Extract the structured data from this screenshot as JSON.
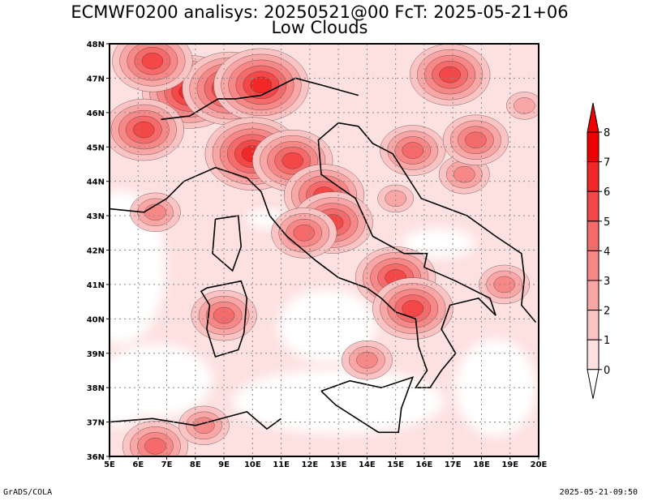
{
  "header": {
    "title_line1": "ECMWF0200 analisys: 20250521@00 FcT: 2025-05-21+06",
    "title_line2": "Low Clouds"
  },
  "footer": {
    "left": "GrADS/COLA",
    "right": "2025-05-21-09:50"
  },
  "chart_data": {
    "type": "heatmap",
    "title": "ECMWF0200 analisys: 20250521@00 FcT: 2025-05-21+06",
    "subtitle": "Low Clouds",
    "x_ticks": [
      "5E",
      "6E",
      "7E",
      "8E",
      "9E",
      "10E",
      "11E",
      "12E",
      "13E",
      "14E",
      "15E",
      "16E",
      "17E",
      "18E",
      "19E",
      "20E"
    ],
    "y_ticks": [
      "36N",
      "37N",
      "38N",
      "39N",
      "40N",
      "41N",
      "42N",
      "43N",
      "44N",
      "45N",
      "46N",
      "47N",
      "48N"
    ],
    "xlim": [
      5,
      20
    ],
    "ylim": [
      36,
      48
    ],
    "grid": true,
    "colorbar": {
      "levels": [
        "0",
        "1",
        "2",
        "3",
        "4",
        "5",
        "6",
        "7",
        "8"
      ],
      "colors": [
        "#ffffff",
        "#fde0e0",
        "#fbc4c4",
        "#f9a6a6",
        "#f78888",
        "#f56a6a",
        "#f44848",
        "#f22828",
        "#f00000"
      ]
    },
    "cloud_cells": [
      {
        "lon": 7.8,
        "lat": 46.6,
        "level": 7
      },
      {
        "lon": 9.2,
        "lat": 46.7,
        "level": 7
      },
      {
        "lon": 10.3,
        "lat": 46.8,
        "level": 7
      },
      {
        "lon": 6.5,
        "lat": 47.5,
        "level": 6
      },
      {
        "lon": 6.2,
        "lat": 45.5,
        "level": 6
      },
      {
        "lon": 10.0,
        "lat": 44.8,
        "level": 7
      },
      {
        "lon": 11.4,
        "lat": 44.6,
        "level": 6
      },
      {
        "lon": 12.5,
        "lat": 43.6,
        "level": 6
      },
      {
        "lon": 12.8,
        "lat": 42.8,
        "level": 6
      },
      {
        "lon": 11.8,
        "lat": 42.5,
        "level": 5
      },
      {
        "lon": 15.0,
        "lat": 41.2,
        "level": 6
      },
      {
        "lon": 15.6,
        "lat": 40.3,
        "level": 6
      },
      {
        "lon": 9.0,
        "lat": 40.1,
        "level": 5
      },
      {
        "lon": 16.9,
        "lat": 47.1,
        "level": 6
      },
      {
        "lon": 15.6,
        "lat": 44.9,
        "level": 5
      },
      {
        "lon": 17.4,
        "lat": 44.2,
        "level": 4
      },
      {
        "lon": 17.8,
        "lat": 45.2,
        "level": 5
      },
      {
        "lon": 6.6,
        "lat": 36.3,
        "level": 5
      },
      {
        "lon": 6.6,
        "lat": 43.1,
        "level": 4
      },
      {
        "lon": 14.0,
        "lat": 38.8,
        "level": 4
      },
      {
        "lon": 18.8,
        "lat": 41.0,
        "level": 4
      },
      {
        "lon": 15.0,
        "lat": 43.5,
        "level": 3
      },
      {
        "lon": 19.5,
        "lat": 46.2,
        "level": 3
      },
      {
        "lon": 8.3,
        "lat": 36.9,
        "level": 4
      }
    ]
  }
}
